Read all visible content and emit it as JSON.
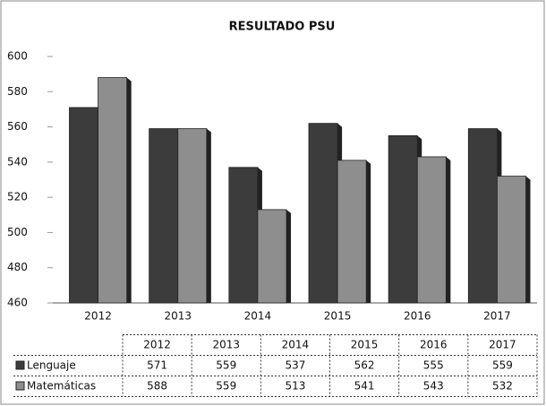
{
  "chart_data": {
    "type": "bar",
    "title": "RESULTADO PSU",
    "categories": [
      "2012",
      "2013",
      "2014",
      "2015",
      "2016",
      "2017"
    ],
    "series": [
      {
        "name": "Lenguaje",
        "color": "#3c3c3c",
        "values": [
          571,
          559,
          537,
          562,
          555,
          559
        ]
      },
      {
        "name": "Matemáticas",
        "color": "#8e8e8e",
        "values": [
          588,
          559,
          513,
          541,
          543,
          532
        ]
      }
    ],
    "ylim": [
      460,
      600
    ],
    "yticks": [
      460,
      480,
      500,
      520,
      540,
      560,
      580,
      600
    ],
    "grid": false
  }
}
